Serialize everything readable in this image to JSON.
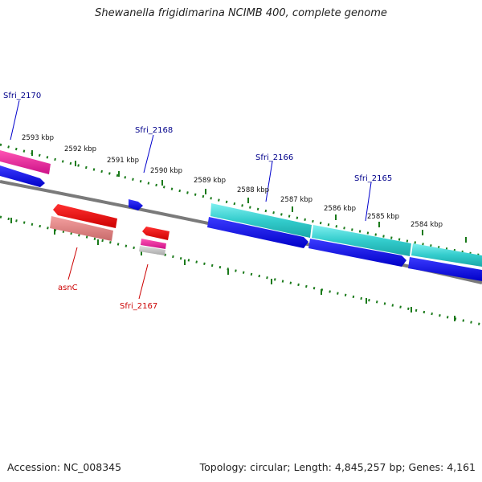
{
  "header": {
    "title": "Shewanella frigidimarina NCIMB 400, complete genome"
  },
  "footer": {
    "accession": "Accession: NC_008345",
    "summary": "Topology: circular; Length: 4,845,257 bp; Genes: 4,161"
  },
  "scale": {
    "ticks": [
      {
        "label": "2593 kbp"
      },
      {
        "label": "2592 kbp"
      },
      {
        "label": "2591 kbp"
      },
      {
        "label": "2590 kbp"
      },
      {
        "label": "2589 kbp"
      },
      {
        "label": "2588 kbp"
      },
      {
        "label": "2587 kbp"
      },
      {
        "label": "2586 kbp"
      },
      {
        "label": "2585 kbp"
      },
      {
        "label": "2584 kbp"
      }
    ]
  },
  "genes": {
    "forward": [
      {
        "name": "Sfri_2170"
      },
      {
        "name": "Sfri_2168"
      },
      {
        "name": "Sfri_2166"
      },
      {
        "name": "Sfri_2165"
      }
    ],
    "reverse": [
      {
        "name": "asnC"
      },
      {
        "name": "Sfri_2167"
      }
    ]
  },
  "colors": {
    "forward_label": "#00008b",
    "reverse_label": "#cc0000",
    "tick": "#1a7a1a",
    "backbone": "#7a7a7a",
    "cds_blue": "#0000dd",
    "cds_cyan": "#22cccc",
    "cds_red": "#ee0000",
    "cds_salmon": "#ee8080",
    "cds_pink": "#ee2299"
  }
}
